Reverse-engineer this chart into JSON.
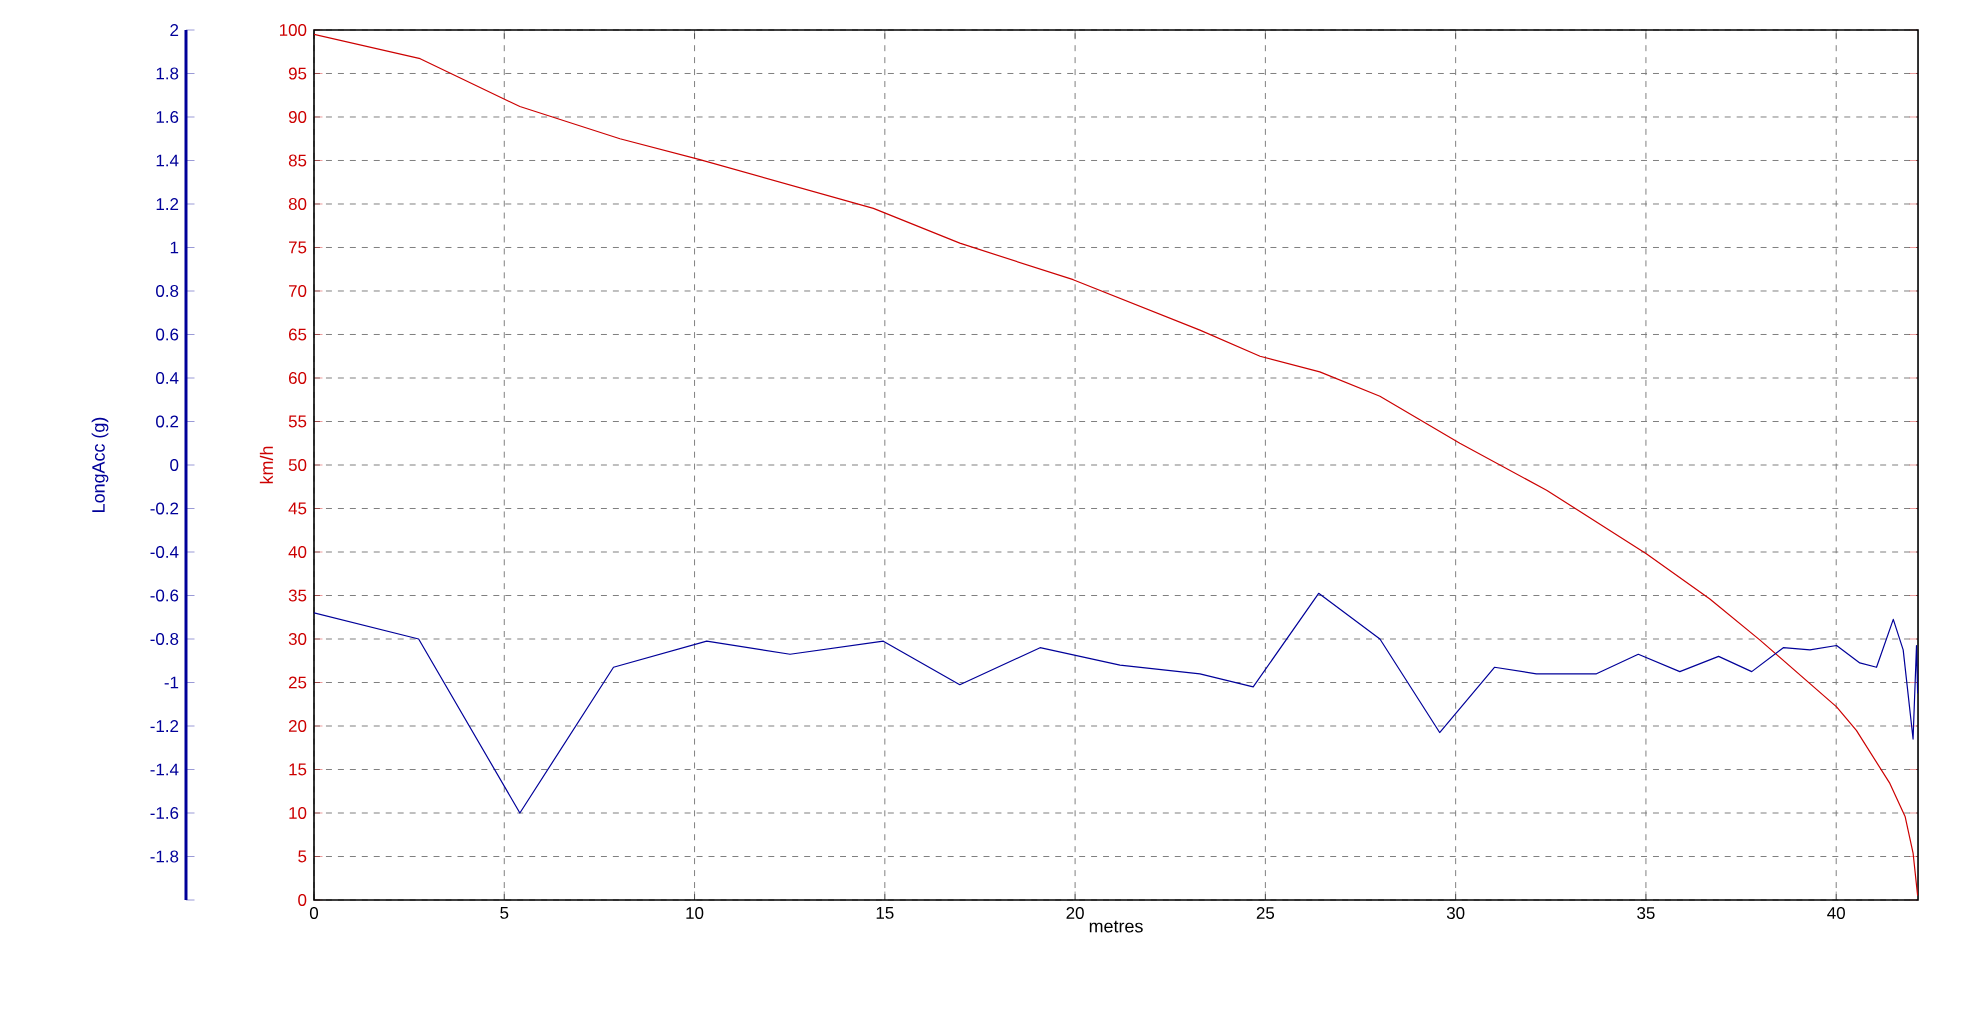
{
  "chart_data": {
    "type": "line",
    "xlabel": "metres",
    "ylabel": "km/h",
    "y2label": "LongAcc (g)",
    "xlim": [
      0,
      42.15
    ],
    "xticks": [
      0,
      5,
      10,
      15,
      20,
      25,
      30,
      35,
      40
    ],
    "ylim": [
      0,
      100
    ],
    "yticks": [
      0,
      5,
      10,
      15,
      20,
      25,
      30,
      35,
      40,
      45,
      50,
      55,
      60,
      65,
      70,
      75,
      80,
      85,
      90,
      95,
      100
    ],
    "y2lim": [
      -2,
      2
    ],
    "y2ticks": [
      {
        "value": -2,
        "label": null
      },
      -1.8,
      -1.6,
      -1.4,
      -1.2,
      -1,
      -0.8,
      -0.6,
      -0.4,
      -0.2,
      0,
      0.2,
      0.4,
      0.6,
      0.8,
      1,
      1.2,
      1.4,
      1.6,
      1.8,
      2
    ],
    "grid": true,
    "series": [
      {
        "color": "#cc0000",
        "x": [
          0,
          2.79,
          5.41,
          8.04,
          10.14,
          14.7,
          16.97,
          19.95,
          23.28,
          24.86,
          26.43,
          28.01,
          30.11,
          32.39,
          35.01,
          36.68,
          37.99,
          40.01,
          40.53,
          41.41,
          41.81,
          42.02,
          42.14
        ],
        "values": [
          99.5,
          96.7,
          91.2,
          87.5,
          85.1,
          79.5,
          75.5,
          71.3,
          65.5,
          62.5,
          60.7,
          57.9,
          52.5,
          47.1,
          39.8,
          34.6,
          29.9,
          22.2,
          19.5,
          13.4,
          9.6,
          5.4,
          0.5
        ]
      },
      {
        "axis": "y2",
        "color": "#000099",
        "x": [
          0,
          2.75,
          5.41,
          7.87,
          10.32,
          12.51,
          14.96,
          16.97,
          19.08,
          21.18,
          23.28,
          24.68,
          26.4,
          28.01,
          29.58,
          31.02,
          32.12,
          33.7,
          34.8,
          35.89,
          36.91,
          37.78,
          38.61,
          39.31,
          40.01,
          40.62,
          41.06,
          41.5,
          41.76,
          42.02,
          42.11,
          42.14
        ],
        "values": [
          -0.68,
          -0.8,
          -1.6,
          -0.93,
          -0.81,
          -0.87,
          -0.81,
          -1.01,
          -0.84,
          -0.92,
          -0.96,
          -1.02,
          -0.59,
          -0.8,
          -1.23,
          -0.93,
          -0.96,
          -0.96,
          -0.87,
          -0.95,
          -0.88,
          -0.95,
          -0.84,
          -0.85,
          -0.83,
          -0.91,
          -0.93,
          -0.71,
          -0.85,
          -1.26,
          -0.83,
          -1.05
        ]
      }
    ]
  }
}
